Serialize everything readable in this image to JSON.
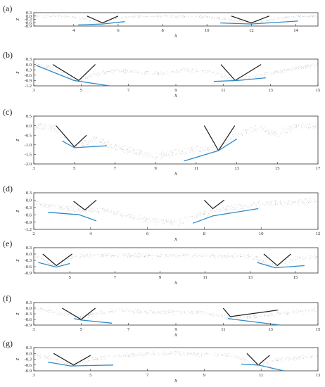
{
  "figure": {
    "colors": {
      "dots": "#7a7a7a",
      "black_lines": "#1a1a1a",
      "blue_lines": "#2e8bc7",
      "frame": "#333333"
    }
  },
  "chart_data": [
    {
      "type": "scatter",
      "panel": "(a)",
      "xlabel": "x",
      "ylabel": "z",
      "xlim": [
        2.2,
        15
      ],
      "ylim": [
        -0.9,
        0.3
      ],
      "xticks": [
        "4",
        "6",
        "8",
        "10",
        "12",
        "14"
      ],
      "yticks": [
        "0.3",
        "0.0",
        "-0.3",
        "-0.6",
        "-0.9"
      ],
      "profile": [
        [
          2.2,
          0
        ],
        [
          3.6,
          0
        ],
        [
          4.3,
          -0.2
        ],
        [
          5.2,
          -0.62
        ],
        [
          6,
          -0.15
        ],
        [
          7,
          -0.02
        ],
        [
          10,
          -0.05
        ],
        [
          11,
          -0.3
        ],
        [
          12,
          -0.62
        ],
        [
          13,
          -0.25
        ],
        [
          14,
          0
        ],
        [
          15,
          0
        ]
      ],
      "black_lines": [
        {
          "points": [
            [
              4.6,
              0.0
            ],
            [
              5.3,
              -0.62
            ],
            [
              6.0,
              0.0
            ]
          ]
        },
        {
          "points": [
            [
              11.1,
              0.0
            ],
            [
              12.0,
              -0.62
            ],
            [
              12.8,
              0.0
            ]
          ]
        }
      ],
      "blue_lines": [
        {
          "points": [
            [
              4.2,
              -0.8
            ],
            [
              5.3,
              -0.72
            ],
            [
              6.3,
              -0.5
            ]
          ]
        },
        {
          "points": [
            [
              10.6,
              -0.62
            ],
            [
              12.0,
              -0.72
            ],
            [
              14.1,
              -0.45
            ]
          ]
        }
      ]
    },
    {
      "type": "scatter",
      "panel": "(b)",
      "xlabel": "x",
      "ylabel": "z",
      "xlim": [
        3,
        15
      ],
      "ylim": [
        -1.2,
        0.3
      ],
      "xticks": [
        "3",
        "5",
        "7",
        "9",
        "11",
        "13",
        "15"
      ],
      "yticks": [
        "0.3",
        "0.0",
        "-0.3",
        "-0.6",
        "-0.9",
        "-1.2"
      ],
      "profile": [
        [
          3,
          0
        ],
        [
          3.6,
          -0.1
        ],
        [
          4.3,
          -0.5
        ],
        [
          4.8,
          -0.9
        ],
        [
          5.5,
          -0.6
        ],
        [
          6.5,
          -0.3
        ],
        [
          8,
          -0.5
        ],
        [
          9.5,
          -0.3
        ],
        [
          10.5,
          -0.4
        ],
        [
          11.5,
          -0.9
        ],
        [
          12.5,
          -0.6
        ],
        [
          14,
          -0.2
        ],
        [
          15,
          0
        ]
      ],
      "black_lines": [
        {
          "points": [
            [
              3.8,
              0.0
            ],
            [
              4.9,
              -0.9
            ],
            [
              5.6,
              0.0
            ]
          ]
        },
        {
          "points": [
            [
              10.9,
              0.0
            ],
            [
              11.5,
              -0.9
            ],
            [
              12.6,
              0.0
            ]
          ]
        }
      ],
      "blue_lines": [
        {
          "points": [
            [
              3.1,
              -0.05
            ],
            [
              4.7,
              -0.9
            ],
            [
              6.2,
              -1.2
            ]
          ]
        },
        {
          "points": [
            [
              10.6,
              -0.95
            ],
            [
              11.6,
              -0.9
            ],
            [
              12.8,
              -0.75
            ]
          ]
        }
      ]
    },
    {
      "type": "scatter",
      "panel": "(c)",
      "xlabel": "x",
      "ylabel": "z",
      "xlim": [
        3,
        17
      ],
      "ylim": [
        -2.0,
        0.5
      ],
      "xticks": [
        "3",
        "5",
        "7",
        "9",
        "11",
        "13",
        "15",
        "17"
      ],
      "yticks": [
        "0.5",
        "0.0",
        "-0.5",
        "-1.0",
        "-1.5",
        "-2.0"
      ],
      "profile": [
        [
          3,
          0
        ],
        [
          4,
          -0.1
        ],
        [
          5,
          -1.1
        ],
        [
          6,
          -0.7
        ],
        [
          7,
          -1.1
        ],
        [
          9,
          -1.6
        ],
        [
          11,
          -1.2
        ],
        [
          12,
          -1.3
        ],
        [
          13,
          -0.5
        ],
        [
          14,
          -0.1
        ],
        [
          15,
          -0.4
        ],
        [
          16,
          0
        ],
        [
          17,
          0
        ]
      ],
      "black_lines": [
        {
          "points": [
            [
              4.1,
              0.0
            ],
            [
              5.0,
              -1.1
            ],
            [
              5.6,
              -0.5
            ]
          ]
        },
        {
          "points": [
            [
              11.4,
              0.0
            ],
            [
              12.1,
              -1.3
            ],
            [
              12.9,
              0.0
            ]
          ]
        }
      ],
      "blue_lines": [
        {
          "points": [
            [
              4.4,
              -0.8
            ],
            [
              5.0,
              -1.15
            ],
            [
              6.6,
              -1.05
            ]
          ]
        },
        {
          "points": [
            [
              10.4,
              -1.85
            ],
            [
              12.1,
              -1.3
            ],
            [
              13.0,
              -0.7
            ]
          ]
        }
      ]
    },
    {
      "type": "scatter",
      "panel": "(d)",
      "xlabel": "x",
      "ylabel": "z",
      "xlim": [
        2,
        12
      ],
      "ylim": [
        -1.2,
        0.3
      ],
      "xticks": [
        "2",
        "4",
        "6",
        "8",
        "10",
        "12"
      ],
      "yticks": [
        "0.3",
        "0.0",
        "-0.3",
        "-0.6",
        "-0.9",
        "-1.2"
      ],
      "profile": [
        [
          2,
          -0.1
        ],
        [
          3,
          -0.3
        ],
        [
          3.8,
          -0.4
        ],
        [
          4.5,
          -0.4
        ],
        [
          6,
          -0.8
        ],
        [
          7,
          -0.9
        ],
        [
          8.3,
          -0.4
        ],
        [
          9,
          -0.3
        ],
        [
          10,
          -0.15
        ],
        [
          12,
          0
        ]
      ],
      "black_lines": [
        {
          "points": [
            [
              3.4,
              -0.05
            ],
            [
              3.8,
              -0.4
            ],
            [
              4.2,
              0.0
            ]
          ]
        },
        {
          "points": [
            [
              8.0,
              0.0
            ],
            [
              8.3,
              -0.35
            ],
            [
              8.7,
              0.0
            ]
          ]
        }
      ],
      "blue_lines": [
        {
          "points": [
            [
              2.5,
              -0.5
            ],
            [
              3.6,
              -0.6
            ],
            [
              4.2,
              -0.85
            ]
          ]
        },
        {
          "points": [
            [
              7.6,
              -0.95
            ],
            [
              8.3,
              -0.65
            ],
            [
              9.9,
              -0.35
            ]
          ]
        }
      ]
    },
    {
      "type": "scatter",
      "panel": "(e)",
      "xlabel": "x",
      "ylabel": "z",
      "xlim": [
        3.4,
        16
      ],
      "ylim": [
        -0.9,
        0.3
      ],
      "xticks": [
        "5",
        "7",
        "9",
        "11",
        "13",
        "15"
      ],
      "yticks": [
        "0.3",
        "0.0",
        "-0.3",
        "-0.6",
        "-0.9"
      ],
      "profile": [
        [
          3.4,
          0
        ],
        [
          4.4,
          -0.55
        ],
        [
          5,
          -0.1
        ],
        [
          6,
          -0.05
        ],
        [
          10,
          -0.05
        ],
        [
          13,
          -0.1
        ],
        [
          14.2,
          -0.55
        ],
        [
          15,
          -0.2
        ],
        [
          16,
          -0.1
        ]
      ],
      "black_lines": [
        {
          "points": [
            [
              3.8,
              0.0
            ],
            [
              4.4,
              -0.55
            ],
            [
              5.1,
              0.0
            ]
          ]
        },
        {
          "points": [
            [
              13.6,
              0.0
            ],
            [
              14.2,
              -0.55
            ],
            [
              14.8,
              0.0
            ]
          ]
        }
      ],
      "blue_lines": [
        {
          "points": [
            [
              3.6,
              -0.4
            ],
            [
              4.4,
              -0.62
            ],
            [
              5.0,
              -0.45
            ]
          ]
        },
        {
          "points": [
            [
              13.3,
              -0.4
            ],
            [
              14.1,
              -0.65
            ],
            [
              15.4,
              -0.55
            ]
          ]
        }
      ]
    },
    {
      "type": "scatter",
      "panel": "(f)",
      "xlabel": "x",
      "ylabel": "z",
      "xlim": [
        3,
        15
      ],
      "ylim": [
        -0.9,
        0.3
      ],
      "xticks": [
        "3",
        "5",
        "7",
        "9",
        "11",
        "13",
        "15"
      ],
      "yticks": [
        "0.3",
        "0.0",
        "-0.3",
        "-0.6",
        "-0.9"
      ],
      "profile": [
        [
          3,
          0
        ],
        [
          4,
          -0.2
        ],
        [
          4.9,
          -0.5
        ],
        [
          5.5,
          -0.3
        ],
        [
          6.5,
          -0.1
        ],
        [
          8,
          -0.2
        ],
        [
          10,
          -0.2
        ],
        [
          11.5,
          -0.55
        ],
        [
          12.5,
          -0.4
        ],
        [
          14,
          -0.2
        ],
        [
          15,
          -0.05
        ]
      ],
      "black_lines": [
        {
          "points": [
            [
              4.2,
              0.0
            ],
            [
              5.0,
              -0.6
            ],
            [
              5.6,
              0.0
            ]
          ]
        },
        {
          "points": [
            [
              11.0,
              0.0
            ],
            [
              11.3,
              -0.45
            ],
            [
              13.3,
              -0.1
            ]
          ]
        }
      ],
      "blue_lines": [
        {
          "points": [
            [
              4.7,
              -0.55
            ],
            [
              5.0,
              -0.63
            ],
            [
              6.3,
              -0.8
            ]
          ]
        },
        {
          "points": [
            [
              11.2,
              -0.55
            ],
            [
              11.6,
              -0.62
            ],
            [
              13.4,
              -0.9
            ]
          ]
        }
      ]
    },
    {
      "type": "scatter",
      "panel": "(g)",
      "xlabel": "x",
      "ylabel": "z",
      "xlim": [
        3,
        13
      ],
      "ylim": [
        -0.9,
        0.3
      ],
      "xticks": [
        "3",
        "5",
        "7",
        "9",
        "11",
        "13"
      ],
      "yticks": [
        "0.3",
        "0.0",
        "-0.3",
        "-0.6",
        "-0.9"
      ],
      "profile": [
        [
          3,
          0
        ],
        [
          3.7,
          -0.3
        ],
        [
          4.3,
          -0.6
        ],
        [
          5,
          -0.3
        ],
        [
          6,
          -0.1
        ],
        [
          8,
          0.05
        ],
        [
          10,
          -0.1
        ],
        [
          10.9,
          -0.6
        ],
        [
          11.6,
          -0.3
        ],
        [
          12.5,
          -0.2
        ],
        [
          13,
          -0.1
        ]
      ],
      "black_lines": [
        {
          "points": [
            [
              3.7,
              0.0
            ],
            [
              4.4,
              -0.6
            ],
            [
              5.0,
              -0.1
            ]
          ]
        },
        {
          "points": [
            [
              10.5,
              0.0
            ],
            [
              10.9,
              -0.6
            ],
            [
              11.3,
              -0.1
            ]
          ]
        }
      ],
      "blue_lines": [
        {
          "points": [
            [
              3.5,
              -0.45
            ],
            [
              4.3,
              -0.65
            ],
            [
              5.8,
              -0.6
            ]
          ]
        },
        {
          "points": [
            [
              10.3,
              -0.55
            ],
            [
              10.9,
              -0.6
            ],
            [
              11.8,
              -0.9
            ]
          ]
        }
      ]
    }
  ]
}
